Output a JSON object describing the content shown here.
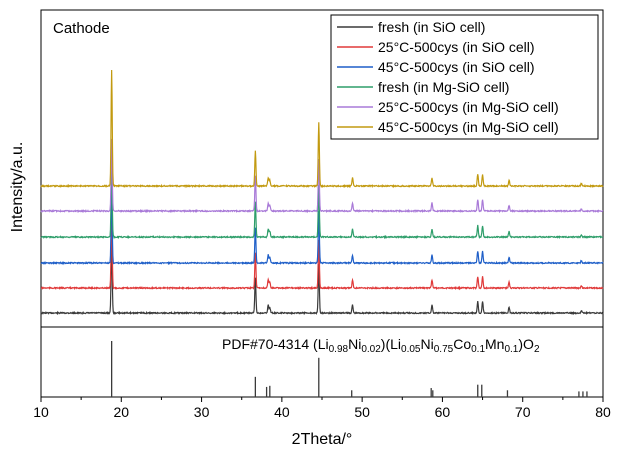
{
  "chart_data": {
    "type": "line",
    "panel_label": "Cathode",
    "xlabel": "2Theta/°",
    "ylabel": "Intensity/a.u.",
    "xlim": [
      10,
      80
    ],
    "xticks": [
      10,
      20,
      30,
      40,
      50,
      60,
      70,
      80
    ],
    "xtick_labels": [
      "10",
      "20",
      "30",
      "40",
      "50",
      "60",
      "70",
      "80"
    ],
    "legend_position": "top-right",
    "grid": false,
    "series": [
      {
        "name": "fresh (in SiO cell)",
        "color": "#3a3a3a",
        "stack_index": 0
      },
      {
        "name": "25°C-500cys (in SiO cell)",
        "color": "#e03a3a",
        "stack_index": 1
      },
      {
        "name": "45°C-500cys (in SiO cell)",
        "color": "#1f5fc8",
        "stack_index": 2
      },
      {
        "name": "fresh (in Mg-SiO cell)",
        "color": "#2e9e6a",
        "stack_index": 3
      },
      {
        "name": "25°C-500cys (in Mg-SiO cell)",
        "color": "#a97ad8",
        "stack_index": 4
      },
      {
        "name": "45°C-500cys (in Mg-SiO cell)",
        "color": "#c29a10",
        "stack_index": 5
      }
    ],
    "peaks": [
      {
        "x": 18.8,
        "h": [
          0.6,
          0.62,
          0.62,
          0.62,
          0.62,
          1.0
        ]
      },
      {
        "x": 36.7,
        "h": [
          0.3,
          0.3,
          0.3,
          0.3,
          0.3,
          0.3
        ]
      },
      {
        "x": 38.3,
        "h": [
          0.07,
          0.07,
          0.07,
          0.07,
          0.07,
          0.07
        ]
      },
      {
        "x": 38.5,
        "h": [
          0.05,
          0.05,
          0.05,
          0.05,
          0.05,
          0.05
        ]
      },
      {
        "x": 44.6,
        "h": [
          0.42,
          0.42,
          0.45,
          0.45,
          0.45,
          0.55
        ]
      },
      {
        "x": 48.8,
        "h": [
          0.07,
          0.07,
          0.07,
          0.07,
          0.07,
          0.07
        ]
      },
      {
        "x": 58.7,
        "h": [
          0.07,
          0.07,
          0.07,
          0.07,
          0.07,
          0.07
        ]
      },
      {
        "x": 64.4,
        "h": [
          0.1,
          0.1,
          0.1,
          0.1,
          0.1,
          0.1
        ]
      },
      {
        "x": 65.0,
        "h": [
          0.1,
          0.1,
          0.1,
          0.1,
          0.1,
          0.1
        ]
      },
      {
        "x": 68.3,
        "h": [
          0.05,
          0.05,
          0.05,
          0.05,
          0.05,
          0.05
        ]
      },
      {
        "x": 77.3,
        "h": [
          0.02,
          0.02,
          0.02,
          0.02,
          0.02,
          0.02
        ]
      }
    ],
    "reference": {
      "title_prefix": "PDF#70-4314 (Li",
      "formula_parts": [
        {
          "text": "PDF#70-4314 (Li",
          "sub": false
        },
        {
          "text": "0.98",
          "sub": true
        },
        {
          "text": "Ni",
          "sub": false
        },
        {
          "text": "0.02",
          "sub": true
        },
        {
          "text": ")(Li",
          "sub": false
        },
        {
          "text": "0.05",
          "sub": true
        },
        {
          "text": "Ni",
          "sub": false
        },
        {
          "text": "0.75",
          "sub": true
        },
        {
          "text": "Co",
          "sub": false
        },
        {
          "text": "0.1",
          "sub": true
        },
        {
          "text": "Mn",
          "sub": false
        },
        {
          "text": "0.1",
          "sub": true
        },
        {
          "text": ")O",
          "sub": false
        },
        {
          "text": "2",
          "sub": true
        }
      ],
      "lines": [
        {
          "x": 18.8,
          "i": 1.0
        },
        {
          "x": 36.7,
          "i": 0.36
        },
        {
          "x": 38.1,
          "i": 0.18
        },
        {
          "x": 38.5,
          "i": 0.2
        },
        {
          "x": 44.6,
          "i": 0.7
        },
        {
          "x": 48.7,
          "i": 0.12
        },
        {
          "x": 58.6,
          "i": 0.16
        },
        {
          "x": 58.8,
          "i": 0.12
        },
        {
          "x": 64.4,
          "i": 0.22
        },
        {
          "x": 64.9,
          "i": 0.22
        },
        {
          "x": 68.1,
          "i": 0.12
        },
        {
          "x": 77.0,
          "i": 0.1
        },
        {
          "x": 77.5,
          "i": 0.1
        },
        {
          "x": 78.0,
          "i": 0.1
        }
      ]
    }
  }
}
